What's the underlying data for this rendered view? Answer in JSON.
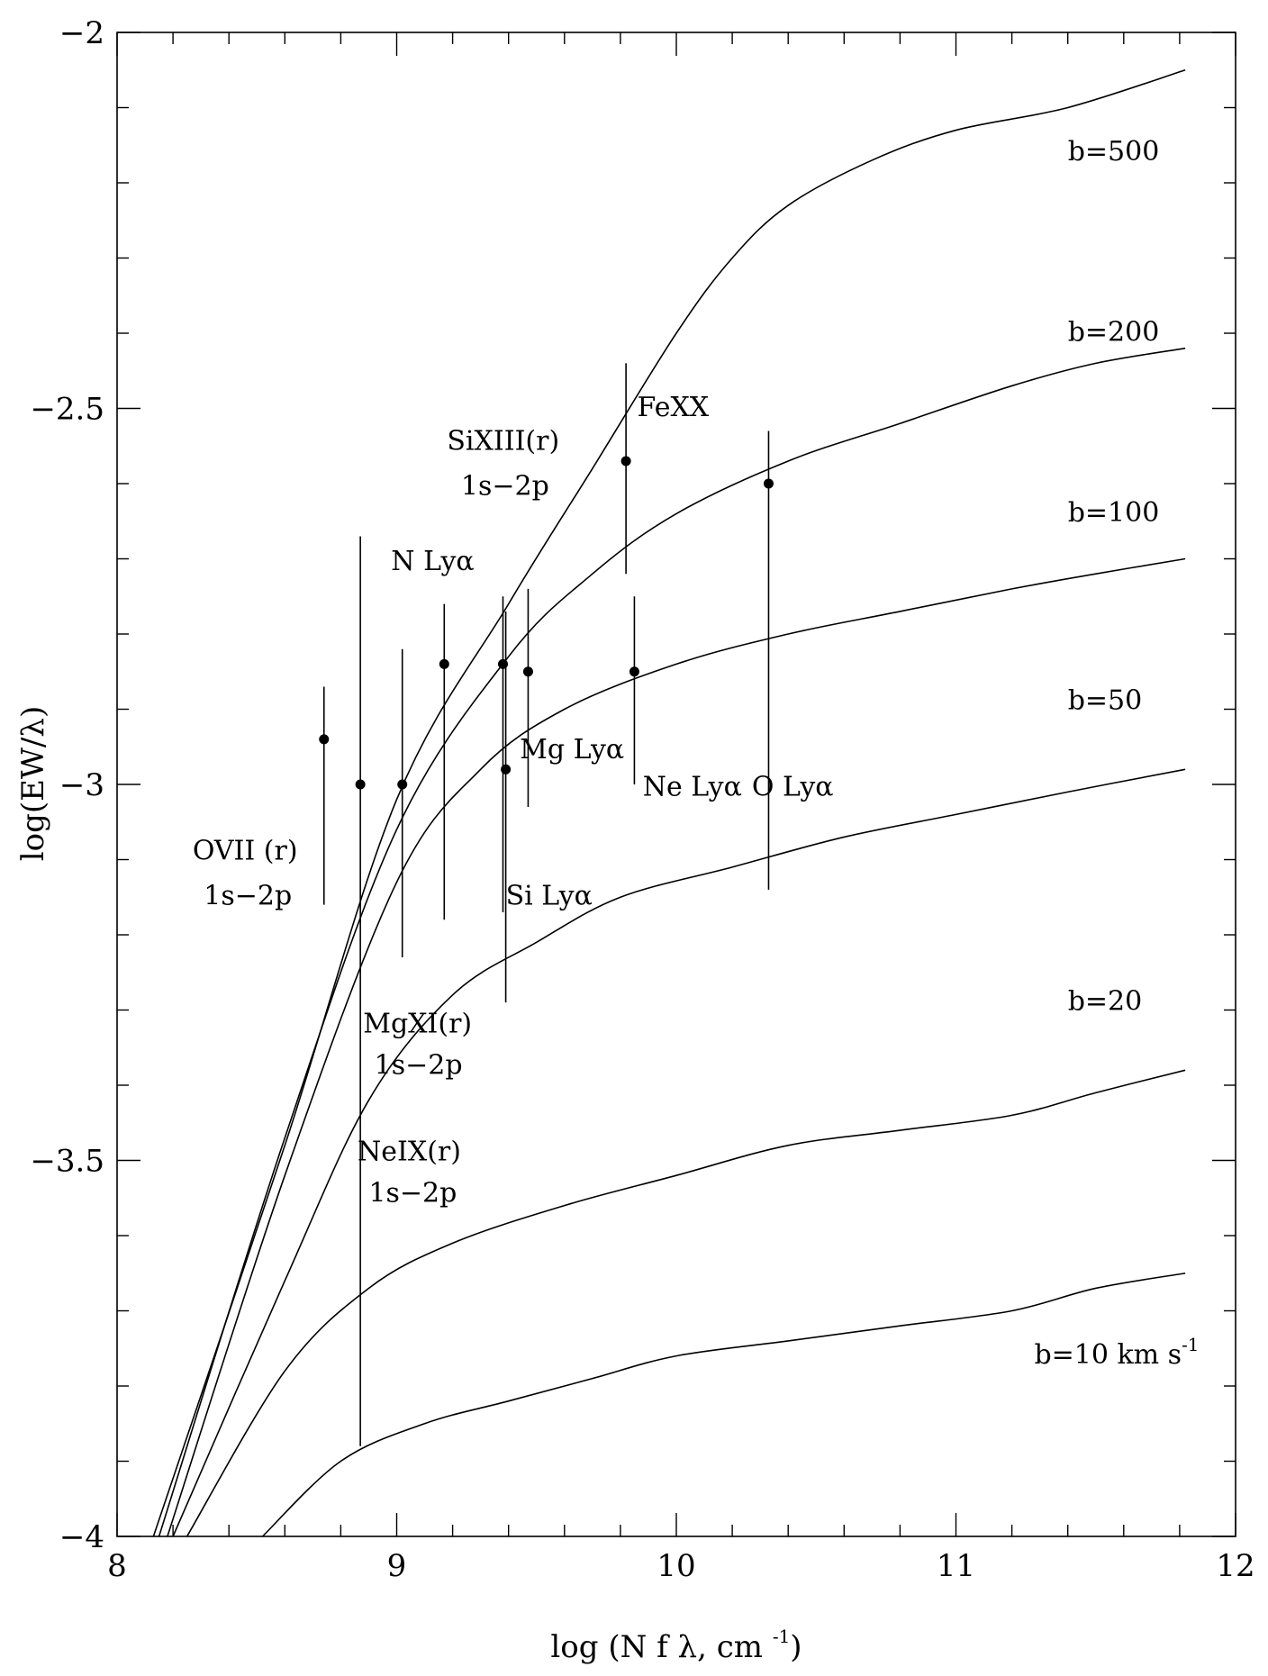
{
  "chart_data": {
    "type": "line",
    "title": "",
    "xlabel": "log (N f λ, cm ",
    "xlabel_sup": "-1",
    "xlabel_close": ")",
    "ylabel": "log(EW/λ)",
    "xlim": [
      8,
      12
    ],
    "ylim": [
      -4,
      -2
    ],
    "xticks": [
      8,
      9,
      10,
      11,
      12
    ],
    "xtick_labels": [
      "8",
      "9",
      "10",
      "11",
      "12"
    ],
    "yticks": [
      -4,
      -3.5,
      -3,
      -2.5,
      -2
    ],
    "ytick_labels": [
      "−4",
      "−3.5",
      "−3",
      "−2.5",
      "−2"
    ],
    "series": [
      {
        "name": "b=500",
        "label": "b=500",
        "label_pos": [
          11.4,
          -2.17
        ],
        "x": [
          8.13,
          8.6,
          9.0,
          9.4,
          9.7,
          10.0,
          10.2,
          10.4,
          10.7,
          11.0,
          11.4,
          11.82
        ],
        "y": [
          -4.0,
          -3.48,
          -3.02,
          -2.76,
          -2.58,
          -2.4,
          -2.3,
          -2.23,
          -2.17,
          -2.13,
          -2.1,
          -2.05
        ]
      },
      {
        "name": "b=200",
        "label": "b=200",
        "label_pos": [
          11.4,
          -2.41
        ],
        "x": [
          8.15,
          8.6,
          9.0,
          9.4,
          9.7,
          10.0,
          10.4,
          10.8,
          11.2,
          11.5,
          11.82
        ],
        "y": [
          -4.0,
          -3.47,
          -3.06,
          -2.83,
          -2.72,
          -2.64,
          -2.57,
          -2.52,
          -2.47,
          -2.44,
          -2.42
        ]
      },
      {
        "name": "b=100",
        "label": "b=100",
        "label_pos": [
          11.4,
          -2.65
        ],
        "x": [
          8.18,
          8.6,
          9.0,
          9.3,
          9.6,
          10.0,
          10.4,
          10.8,
          11.2,
          11.5,
          11.82
        ],
        "y": [
          -4.0,
          -3.52,
          -3.13,
          -2.98,
          -2.9,
          -2.84,
          -2.8,
          -2.77,
          -2.74,
          -2.72,
          -2.7
        ]
      },
      {
        "name": "b=50",
        "label": "b=50",
        "label_pos": [
          11.4,
          -2.9
        ],
        "x": [
          8.2,
          8.6,
          8.9,
          9.2,
          9.5,
          9.8,
          10.2,
          10.6,
          11.0,
          11.4,
          11.82
        ],
        "y": [
          -4.0,
          -3.66,
          -3.42,
          -3.28,
          -3.21,
          -3.15,
          -3.11,
          -3.07,
          -3.04,
          -3.01,
          -2.98
        ]
      },
      {
        "name": "b=20",
        "label": "b=20",
        "label_pos": [
          11.4,
          -3.3
        ],
        "x": [
          8.25,
          8.6,
          8.9,
          9.2,
          9.6,
          10.0,
          10.4,
          10.8,
          11.2,
          11.5,
          11.82
        ],
        "y": [
          -4.0,
          -3.78,
          -3.67,
          -3.61,
          -3.56,
          -3.52,
          -3.48,
          -3.46,
          -3.44,
          -3.41,
          -3.38
        ]
      },
      {
        "name": "b=10 km s-1",
        "label": "b=10 km s",
        "label_sup": "-1",
        "label_pos": [
          11.28,
          -3.77
        ],
        "x": [
          8.52,
          8.8,
          9.1,
          9.4,
          9.7,
          10.0,
          10.4,
          10.8,
          11.2,
          11.5,
          11.82
        ],
        "y": [
          -4.0,
          -3.9,
          -3.85,
          -3.82,
          -3.79,
          -3.76,
          -3.74,
          -3.72,
          -3.7,
          -3.67,
          -3.65
        ]
      }
    ],
    "points": [
      {
        "x": 8.74,
        "y": -2.94,
        "ylo": -3.16,
        "yhi": -2.87
      },
      {
        "x": 8.87,
        "y": -3.0,
        "ylo": -3.88,
        "yhi": -2.67
      },
      {
        "x": 9.02,
        "y": -3.0,
        "ylo": -3.23,
        "yhi": -2.82
      },
      {
        "x": 9.17,
        "y": -2.84,
        "ylo": -3.18,
        "yhi": -2.76
      },
      {
        "x": 9.38,
        "y": -2.84,
        "ylo": -3.17,
        "yhi": -2.75
      },
      {
        "x": 9.39,
        "y": -2.98,
        "ylo": -3.29,
        "yhi": -2.77
      },
      {
        "x": 9.47,
        "y": -2.85,
        "ylo": -3.03,
        "yhi": -2.74
      },
      {
        "x": 9.82,
        "y": -2.57,
        "ylo": -2.72,
        "yhi": -2.44
      },
      {
        "x": 9.85,
        "y": -2.85,
        "ylo": -3.0,
        "yhi": -2.75
      },
      {
        "x": 10.33,
        "y": -2.6,
        "ylo": -3.14,
        "yhi": -2.53
      }
    ],
    "annotations": [
      {
        "text": "FeXX",
        "x": 9.86,
        "y": -2.51
      },
      {
        "text": "SiXIII(r)",
        "x": 9.18,
        "y": -2.555
      },
      {
        "text": "1s−2p",
        "x": 9.23,
        "y": -2.615
      },
      {
        "text": "N Lyα",
        "x": 8.98,
        "y": -2.715
      },
      {
        "text": "Mg Lyα",
        "x": 9.44,
        "y": -2.965
      },
      {
        "text": "Ne Lyα",
        "x": 9.88,
        "y": -3.015
      },
      {
        "text": "O Lyα",
        "x": 10.27,
        "y": -3.015
      },
      {
        "text": "OVII (r)",
        "x": 8.27,
        "y": -3.1
      },
      {
        "text": "1s−2p",
        "x": 8.31,
        "y": -3.16
      },
      {
        "text": "Si Lyα",
        "x": 9.39,
        "y": -3.16
      },
      {
        "text": "MgXI(r)",
        "x": 8.88,
        "y": -3.33
      },
      {
        "text": "1s−2p",
        "x": 8.92,
        "y": -3.385
      },
      {
        "text": "NeIX(r)",
        "x": 8.86,
        "y": -3.5
      },
      {
        "text": "1s−2p",
        "x": 8.9,
        "y": -3.555
      }
    ]
  }
}
